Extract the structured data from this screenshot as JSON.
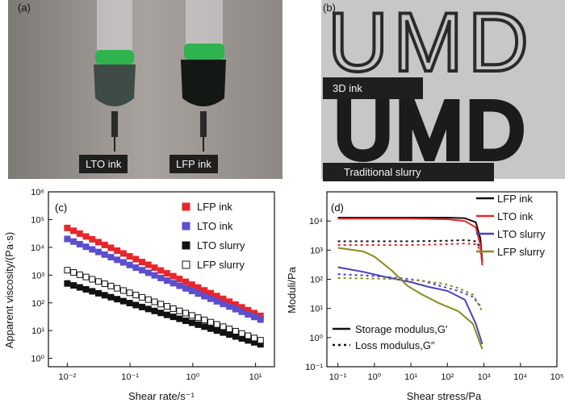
{
  "panels": {
    "a": {
      "label": "(a)",
      "captions": [
        "LTO ink",
        "LFP ink"
      ]
    },
    "b": {
      "label": "(b)",
      "letters_top": "UMD",
      "letters_bottom": "UMD",
      "captions": [
        "3D ink",
        "Traditional slurry"
      ]
    }
  },
  "chart_data": [
    {
      "panel": "(c)",
      "type": "scatter",
      "xscale": "log",
      "yscale": "log",
      "xlabel": "Shear rate/s⁻¹",
      "ylabel": "Apparent viscosity/(Pa·s)",
      "xlim": [
        0.005,
        20
      ],
      "ylim": [
        0.5,
        1000000
      ],
      "xticks": [
        "10⁻²",
        "10⁻¹",
        "10⁰",
        "10¹"
      ],
      "xtick_values": [
        0.01,
        0.1,
        1,
        10
      ],
      "yticks": [
        "10⁰",
        "10¹",
        "10²",
        "10³",
        "10⁴",
        "10⁵",
        "10⁶"
      ],
      "ytick_values": [
        1,
        10,
        100,
        1000,
        10000,
        100000,
        1000000
      ],
      "legend_position": "top-right",
      "series": [
        {
          "name": "LFP ink",
          "color": "#e8262a",
          "marker": "filled-square",
          "start": 50000,
          "end": 34,
          "slope": -0.92,
          "points": 32
        },
        {
          "name": "LTO ink",
          "color": "#5b4fcf",
          "marker": "filled-square",
          "start": 20000,
          "end": 25,
          "slope": -0.92,
          "points": 32
        },
        {
          "name": "LTO slurry",
          "color": "#111111",
          "marker": "filled-square",
          "start": 500,
          "end": 3.2,
          "slope": -0.5,
          "points": 32
        },
        {
          "name": "LFP slurry",
          "color": "#111111",
          "marker": "open-square",
          "start": 1500,
          "end": 4.5,
          "slope": -0.6,
          "points": 32
        }
      ]
    },
    {
      "panel": "(d)",
      "type": "line",
      "xscale": "log",
      "yscale": "log",
      "xlabel": "Shear stress/Pa",
      "ylabel": "Moduli/Pa",
      "xlim": [
        0.05,
        100000
      ],
      "ylim": [
        0.1,
        100000
      ],
      "xticks": [
        "10⁻¹",
        "10⁰",
        "10¹",
        "10²",
        "10³",
        "10⁴",
        "10⁵"
      ],
      "xtick_values": [
        0.1,
        1,
        10,
        100,
        1000,
        10000,
        100000
      ],
      "yticks": [
        "10⁻¹",
        "10⁰",
        "10¹",
        "10²",
        "10³",
        "10⁴"
      ],
      "ytick_values": [
        0.1,
        1,
        10,
        100,
        1000,
        10000
      ],
      "legend_position": "top-right",
      "legend_style_entries": [
        "Storage modulus,G′",
        "Loss modulus,G″"
      ],
      "series": [
        {
          "name": "LFP ink",
          "color": "#111111",
          "G_storage": [
            [
              0.1,
              13000
            ],
            [
              1,
              13000
            ],
            [
              10,
              13000
            ],
            [
              100,
              13000
            ],
            [
              300,
              12500
            ],
            [
              600,
              9000
            ],
            [
              800,
              2500
            ],
            [
              900,
              400
            ]
          ],
          "G_loss": [
            [
              0.1,
              2000
            ],
            [
              1,
              2000
            ],
            [
              10,
              2000
            ],
            [
              100,
              2100
            ],
            [
              300,
              2200
            ],
            [
              600,
              2000
            ],
            [
              800,
              1200
            ],
            [
              900,
              500
            ]
          ]
        },
        {
          "name": "LTO ink",
          "color": "#e8262a",
          "G_storage": [
            [
              0.1,
              12000
            ],
            [
              1,
              12000
            ],
            [
              10,
              12000
            ],
            [
              100,
              11500
            ],
            [
              300,
              10000
            ],
            [
              600,
              6000
            ],
            [
              800,
              1500
            ],
            [
              900,
              300
            ]
          ],
          "G_loss": [
            [
              0.1,
              1500
            ],
            [
              1,
              1500
            ],
            [
              10,
              1500
            ],
            [
              100,
              1600
            ],
            [
              300,
              1700
            ],
            [
              600,
              1600
            ],
            [
              800,
              1000
            ],
            [
              900,
              350
            ]
          ]
        },
        {
          "name": "LTO slurry",
          "color": "#4a3fc4",
          "G_storage": [
            [
              0.1,
              260
            ],
            [
              0.5,
              180
            ],
            [
              2,
              120
            ],
            [
              10,
              80
            ],
            [
              30,
              55
            ],
            [
              100,
              40
            ],
            [
              300,
              20
            ],
            [
              600,
              3
            ],
            [
              900,
              0.6
            ]
          ],
          "G_loss": [
            [
              0.1,
              150
            ],
            [
              1,
              130
            ],
            [
              5,
              110
            ],
            [
              20,
              90
            ],
            [
              60,
              60
            ],
            [
              200,
              40
            ],
            [
              500,
              25
            ],
            [
              800,
              12
            ]
          ]
        },
        {
          "name": "LFP slurry",
          "color": "#8a8a1f",
          "G_storage": [
            [
              0.1,
              1200
            ],
            [
              0.5,
              900
            ],
            [
              1,
              600
            ],
            [
              3,
              200
            ],
            [
              8,
              60
            ],
            [
              20,
              30
            ],
            [
              60,
              15
            ],
            [
              200,
              8
            ],
            [
              500,
              3
            ],
            [
              900,
              0.4
            ]
          ],
          "G_loss": [
            [
              0.1,
              110
            ],
            [
              1,
              105
            ],
            [
              5,
              100
            ],
            [
              20,
              90
            ],
            [
              80,
              70
            ],
            [
              200,
              50
            ],
            [
              500,
              30
            ],
            [
              900,
              8
            ]
          ]
        }
      ]
    }
  ]
}
